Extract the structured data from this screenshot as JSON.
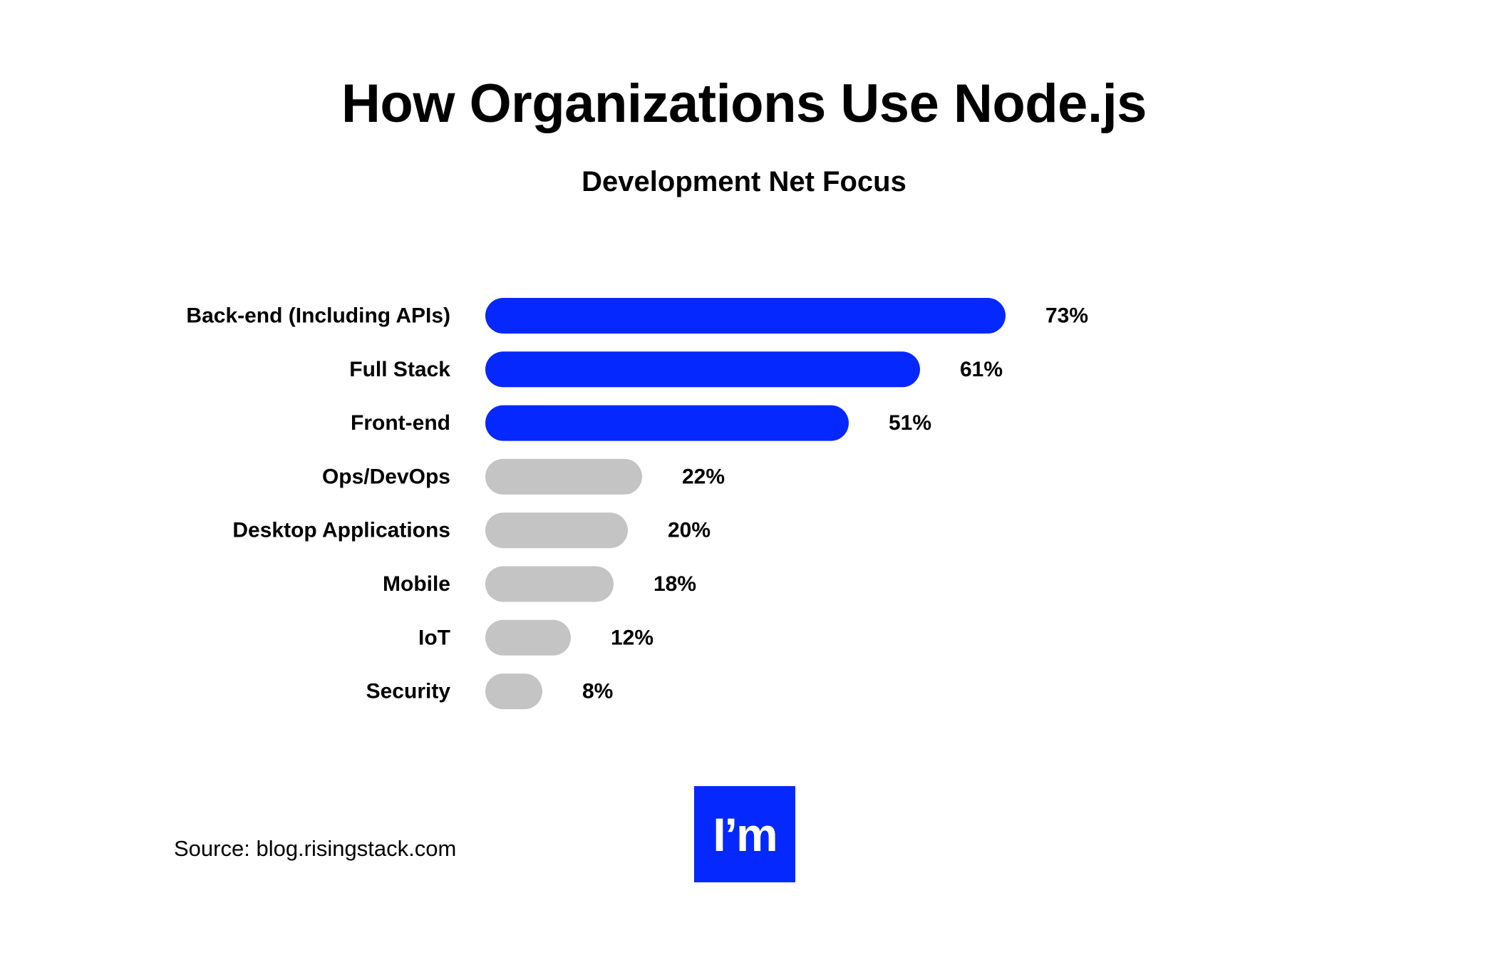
{
  "chart_data": {
    "type": "bar",
    "orientation": "horizontal",
    "title": "How Organizations Use Node.js",
    "subtitle": "Development Net Focus",
    "categories": [
      "Back-end (Including APIs)",
      "Full Stack",
      "Front-end",
      "Ops/DevOps",
      "Desktop Applications",
      "Mobile",
      "IoT",
      "Security"
    ],
    "values": [
      73,
      61,
      51,
      22,
      20,
      18,
      12,
      8
    ],
    "value_labels": [
      "73%",
      "61%",
      "51%",
      "22%",
      "20%",
      "18%",
      "12%",
      "8%"
    ],
    "unit": "%",
    "xlim": [
      0,
      73
    ],
    "grid": false,
    "highlighted_categories": [
      "Back-end (Including APIs)",
      "Full Stack",
      "Front-end"
    ],
    "colors": {
      "highlight": "#0528FF",
      "default": "#C4C4C4"
    }
  },
  "source": "Source: blog.risingstack.com",
  "logo": {
    "text": "I’m",
    "background": "#0528FF",
    "color": "#FFFFFF"
  }
}
